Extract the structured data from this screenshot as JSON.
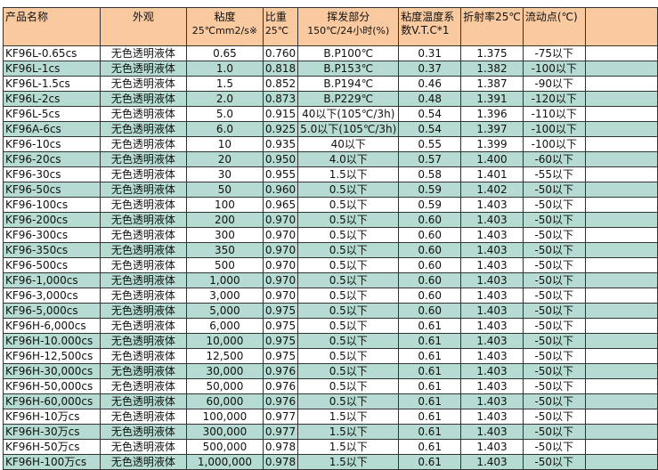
{
  "colors": {
    "header": "#f9c9a0",
    "row_alt": "#b5dbd3",
    "row": "#ffffff"
  },
  "headers": {
    "name": "产品名称",
    "appearance": "外观",
    "viscosity": "粘度",
    "viscosity_unit": "25℃mm2/s※",
    "gravity": "比重",
    "gravity_unit": "25℃",
    "volatile": "挥发部分",
    "volatile_unit": "150℃/24小时(%)",
    "vtc": "粘度温度系",
    "vtc_unit": "数V.T.C*1",
    "refractive": "折射率25℃",
    "pour_point": "流动点(℃)"
  },
  "rows": [
    [
      "KF96L-0.65cs",
      "无色透明液体",
      "0.65",
      "0.760",
      "B.P100℃",
      "0.31",
      "1.375",
      "-75以下"
    ],
    [
      "KF96L-1cs",
      "无色透明液体",
      "1.0",
      "0.818",
      "B.P153℃",
      "0.37",
      "1.382",
      "-100以下"
    ],
    [
      "KF96L-1.5cs",
      "无色透明液体",
      "1.5",
      "0.852",
      "B.P194℃",
      "0.46",
      "1.387",
      "-90以下"
    ],
    [
      "KF96L-2cs",
      "无色透明液体",
      "2.0",
      "0.873",
      "B.P229℃",
      "0.48",
      "1.391",
      "-120以下"
    ],
    [
      "KF96L-5cs",
      "无色透明液体",
      "5.0",
      "0.915",
      "40以下(105℃/3h)",
      "0.54",
      "1.396",
      "-110以下"
    ],
    [
      "KF96A-6cs",
      "无色透明液体",
      "6.0",
      "0.925",
      "5.0以下(105℃/3h)",
      "0.54",
      "1.397",
      "-100以下"
    ],
    [
      "KF96-10cs",
      "无色透明液体",
      "10",
      "0.935",
      "40以下",
      "0.55",
      "1.399",
      "-100以下"
    ],
    [
      "KF96-20cs",
      "无色透明液体",
      "20",
      "0.950",
      "4.0以下",
      "0.57",
      "1.400",
      "-60以下"
    ],
    [
      "KF96-30cs",
      "无色透明液体",
      "30",
      "0.955",
      "1.5以下",
      "0.58",
      "1.401",
      "-55以下"
    ],
    [
      "KF96-50cs",
      "无色透明液体",
      "50",
      "0.960",
      "0.5以下",
      "0.59",
      "1.402",
      "-50以下"
    ],
    [
      "KF96-100cs",
      "无色透明液体",
      "100",
      "0.965",
      "0.5以下",
      "0.59",
      "1.403",
      "-50以下"
    ],
    [
      "KF96-200cs",
      "无色透明液体",
      "200",
      "0.970",
      "0.5以下",
      "0.60",
      "1.403",
      "-50以下"
    ],
    [
      "KF96-300cs",
      "无色透明液体",
      "300",
      "0.970",
      "0.5以下",
      "0.60",
      "1.403",
      "-50以下"
    ],
    [
      "KF96-350cs",
      "无色透明液体",
      "350",
      "0.970",
      "0.5以下",
      "0.60",
      "1.403",
      "-50以下"
    ],
    [
      "KF96-500cs",
      "无色透明液体",
      "500",
      "0.970",
      "0.5以下",
      "0.60",
      "1.403",
      "-50以下"
    ],
    [
      "KF96-1,000cs",
      "无色透明液体",
      "1,000",
      "0.970",
      "0.5以下",
      "0.60",
      "1.403",
      "-50以下"
    ],
    [
      "KF96-3,000cs",
      "无色透明液体",
      "3,000",
      "0.970",
      "0.5以下",
      "0.60",
      "1.403",
      "-50以下"
    ],
    [
      "KF96-5,000cs",
      "无色透明液体",
      "5,000",
      "0.975",
      "0.5以下",
      "0.60",
      "1.403",
      "-50以下"
    ],
    [
      "KF96H-6,000cs",
      "无色透明液体",
      "6,000",
      "0.975",
      "0.5以下",
      "0.61",
      "1.403",
      "-50以下"
    ],
    [
      "KF96H-10.000cs",
      "无色透明液体",
      "10,000",
      "0.975",
      "0.5以下",
      "0.61",
      "1.403",
      "-50以下"
    ],
    [
      "KF96H-12,500cs",
      "无色透明液体",
      "12,500",
      "0.975",
      "0.5以下",
      "0.61",
      "1.403",
      "-50以下"
    ],
    [
      "KF96H-30,000cs",
      "无色透明液体",
      "30,000",
      "0.976",
      "0.5以下",
      "0.61",
      "1.403",
      "-50以下"
    ],
    [
      "KF96H-50,000cs",
      "无色透明液体",
      "50,000",
      "0.976",
      "0.5以下",
      "0.61",
      "1.403",
      "-50以下"
    ],
    [
      "KF96H-60,000cs",
      "无色透明液体",
      "60,000",
      "0.976",
      "0.5以下",
      "0.61",
      "1.403",
      "-50以下"
    ],
    [
      "KF96H-10万cs",
      "无色透明液体",
      "100,000",
      "0.977",
      "1.5以下",
      "0.61",
      "1.403",
      "-50以下"
    ],
    [
      "KF96H-30万cs",
      "无色透明液体",
      "300,000",
      "0.977",
      "1.5以下",
      "0.61",
      "1.403",
      "-50以下"
    ],
    [
      "KF96H-50万cs",
      "无色透明液体",
      "500,000",
      "0.978",
      "1.5以下",
      "0.61",
      "1.403",
      "-50以下"
    ],
    [
      "KF96H-100万cs",
      "无色透明液体",
      "1,000,000",
      "0.978",
      "1.5以下",
      "0.61",
      "1.403",
      "-50以下"
    ]
  ]
}
